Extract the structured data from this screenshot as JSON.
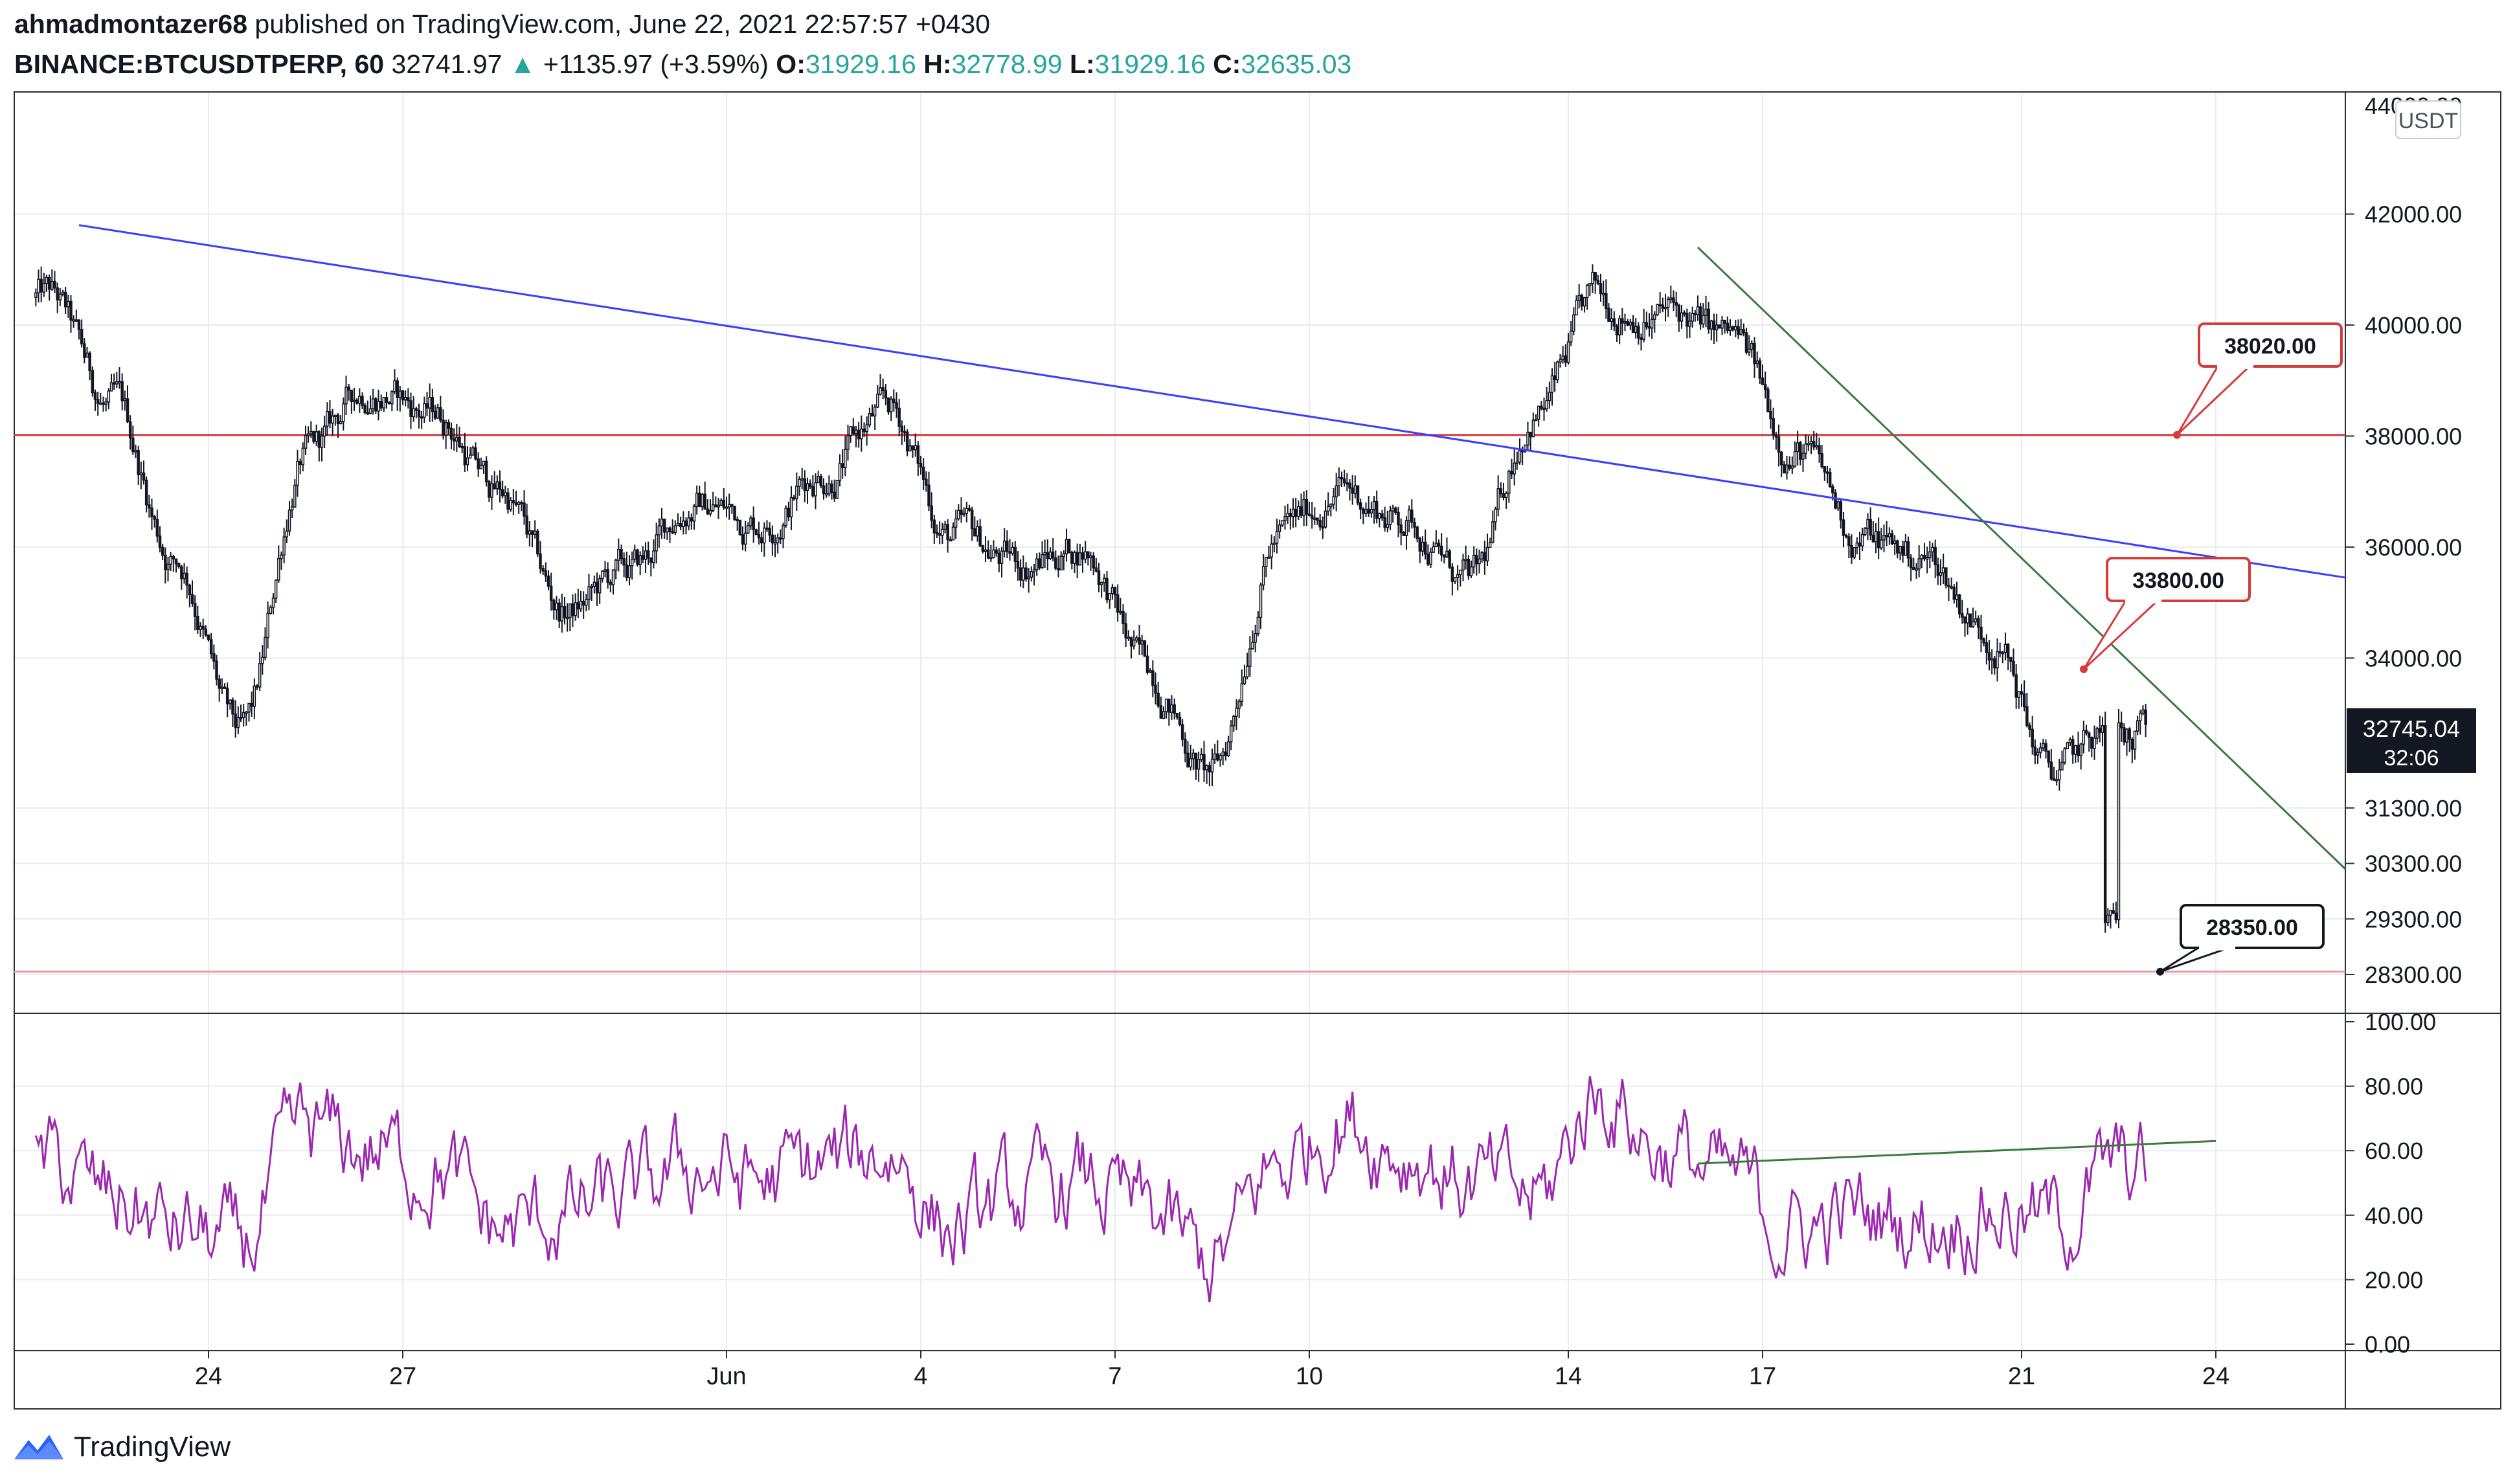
{
  "header": {
    "author": "ahmadmontazer68",
    "published_text": "published on TradingView.com, June 22, 2021 22:57:57 +0430",
    "symbol": "BINANCE:BTCUSDTPERP, 60",
    "last": "32741.97",
    "change_arrow": "▲",
    "change": "+1135.97 (+3.59%)",
    "o_label": "O:",
    "o_value": "31929.16",
    "h_label": "H:",
    "h_value": "32778.99",
    "l_label": "L:",
    "l_value": "31929.16",
    "c_label": "C:",
    "c_value": "32635.03"
  },
  "footer": {
    "brand": "TradingView"
  },
  "colors": {
    "candle": "#131722",
    "trend_blue": "#3d3dff",
    "trend_green": "#3b7a3b",
    "level_red": "#d43b3b",
    "level_pink": "#e89a9a",
    "rsi": "#9c27b0",
    "grid": "#e6ecf2",
    "axis_text": "#131722"
  },
  "chart_data": [
    {
      "type": "candlestick",
      "title": "",
      "currency_label": "USDT",
      "ylim": [
        27600,
        44200
      ],
      "y_ticks": [
        "42000.00",
        "40000.00",
        "38000.00",
        "36000.00",
        "34000.00",
        "31300.00",
        "30300.00",
        "29300.00",
        "28300.00"
      ],
      "top_partial_tick": "44000.00",
      "x_ticks": [
        "24",
        "27",
        "Jun",
        "4",
        "7",
        "10",
        "14",
        "17",
        "21",
        "24"
      ],
      "last_price_label": {
        "price": "32745.04",
        "countdown": "32:06"
      },
      "horizontal_levels": [
        {
          "price": 38020,
          "label": "38020.00",
          "color": "red"
        },
        {
          "price": 28350,
          "label": "28350.00",
          "color": "pink"
        }
      ],
      "trendline_labels": [
        {
          "price": 33800,
          "label": "33800.00",
          "color": "red"
        }
      ],
      "trendlines": [
        {
          "color": "blue",
          "from": {
            "date": "2021-05-22",
            "price": 41800
          },
          "to": {
            "date": "2021-06-26",
            "price": 35450
          }
        },
        {
          "color": "green",
          "from": {
            "date": "2021-06-16",
            "price": 41400
          },
          "to": {
            "date": "2021-06-26",
            "price": 30200
          }
        }
      ],
      "price_path": {
        "dates": [
          "2021-05-21",
          "2021-05-22",
          "2021-05-23",
          "2021-05-24",
          "2021-05-25",
          "2021-05-26",
          "2021-05-27",
          "2021-05-28",
          "2021-05-29",
          "2021-05-30",
          "2021-05-31",
          "2021-06-01",
          "2021-06-02",
          "2021-06-03",
          "2021-06-04",
          "2021-06-05",
          "2021-06-06",
          "2021-06-07",
          "2021-06-08",
          "2021-06-09",
          "2021-06-10",
          "2021-06-11",
          "2021-06-12",
          "2021-06-13",
          "2021-06-14",
          "2021-06-15",
          "2021-06-16",
          "2021-06-17",
          "2021-06-18",
          "2021-06-19",
          "2021-06-20",
          "2021-06-21",
          "2021-06-22"
        ],
        "close": [
          40500,
          38500,
          35800,
          32500,
          37600,
          38900,
          38400,
          37000,
          34800,
          35500,
          36800,
          36500,
          37400,
          38400,
          36200,
          35700,
          36000,
          33800,
          31900,
          36200,
          37000,
          36500,
          35300,
          38500,
          40400,
          40200,
          39700,
          37800,
          36200,
          35800,
          34500,
          31900,
          32745
        ]
      }
    },
    {
      "type": "line",
      "title": "",
      "ylim": [
        0,
        100
      ],
      "y_ticks": [
        "100.00",
        "80.00",
        "60.00",
        "40.00",
        "20.00",
        "0.00"
      ],
      "trendline": {
        "color": "green",
        "from": {
          "date": "2021-06-16",
          "value": 56
        },
        "to": {
          "date": "2021-06-24",
          "value": 63
        }
      },
      "series": [
        {
          "dates": [
            "2021-05-21",
            "2021-05-22",
            "2021-05-23",
            "2021-05-24",
            "2021-05-25",
            "2021-05-26",
            "2021-05-27",
            "2021-05-28",
            "2021-05-29",
            "2021-05-30",
            "2021-05-31",
            "2021-06-01",
            "2021-06-02",
            "2021-06-03",
            "2021-06-04",
            "2021-06-05",
            "2021-06-06",
            "2021-06-07",
            "2021-06-08",
            "2021-06-09",
            "2021-06-10",
            "2021-06-11",
            "2021-06-12",
            "2021-06-13",
            "2021-06-14",
            "2021-06-15",
            "2021-06-16",
            "2021-06-17",
            "2021-06-18",
            "2021-06-19",
            "2021-06-20",
            "2021-06-21",
            "2021-06-22"
          ],
          "values": [
            55,
            45,
            35,
            30,
            65,
            60,
            55,
            35,
            40,
            45,
            55,
            50,
            55,
            60,
            35,
            45,
            50,
            40,
            25,
            55,
            70,
            60,
            50,
            45,
            78,
            60,
            50,
            35,
            40,
            38,
            42,
            38,
            54
          ]
        }
      ]
    }
  ]
}
